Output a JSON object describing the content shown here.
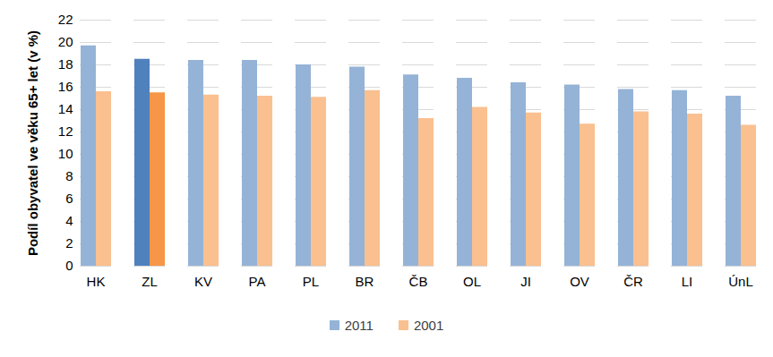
{
  "chart_data": {
    "type": "bar",
    "categories": [
      "HK",
      "ZL",
      "KV",
      "PA",
      "PL",
      "BR",
      "ČB",
      "OL",
      "JI",
      "OV",
      "ČR",
      "LI",
      "ÚnL"
    ],
    "series": [
      {
        "name": "2011",
        "color": "#95B3D7",
        "colors": [
          "#95B3D7",
          "#4F81BD",
          "#95B3D7",
          "#95B3D7",
          "#95B3D7",
          "#95B3D7",
          "#95B3D7",
          "#95B3D7",
          "#95B3D7",
          "#95B3D7",
          "#95B3D7",
          "#95B3D7",
          "#95B3D7"
        ],
        "values": [
          19.7,
          18.5,
          18.4,
          18.4,
          18.0,
          17.8,
          17.1,
          16.8,
          16.4,
          16.2,
          15.8,
          15.7,
          15.2
        ]
      },
      {
        "name": "2001",
        "color": "#FAC090",
        "colors": [
          "#FAC090",
          "#F79646",
          "#FAC090",
          "#FAC090",
          "#FAC090",
          "#FAC090",
          "#FAC090",
          "#FAC090",
          "#FAC090",
          "#FAC090",
          "#FAC090",
          "#FAC090",
          "#FAC090"
        ],
        "values": [
          15.6,
          15.5,
          15.3,
          15.2,
          15.1,
          15.7,
          13.2,
          14.2,
          13.7,
          12.7,
          13.8,
          13.6,
          12.6
        ]
      }
    ],
    "y_label": "Podíl obyvatel ve věku 65+ let (v %)",
    "ylim": [
      0,
      22
    ],
    "yticks": [
      0,
      2,
      4,
      6,
      8,
      10,
      12,
      14,
      16,
      18,
      20,
      22
    ],
    "grid": true,
    "legend": "bottom"
  }
}
